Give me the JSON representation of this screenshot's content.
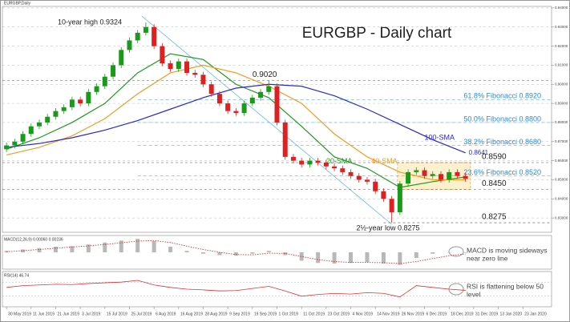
{
  "chart_data": {
    "type": "candlestick",
    "title": "EURGBP - Daily chart",
    "symbol_label": "EURGBP,Daily",
    "up_color": "#1a9a1a",
    "down_color": "#e02020",
    "xlim": [
      -0.5,
      66.5
    ],
    "xticks": [
      {
        "value": 0,
        "label": "30 May 2019"
      },
      {
        "value": 3,
        "label": "11 Jun 2019"
      },
      {
        "value": 6,
        "label": "21 Jun 2019"
      },
      {
        "value": 9,
        "label": "3 Jul 2019"
      },
      {
        "value": 12,
        "label": "15 Jul 2019"
      },
      {
        "value": 15,
        "label": "25 Jul 2019"
      },
      {
        "value": 18,
        "label": "6 Aug 2019"
      },
      {
        "value": 21,
        "label": "16 Aug 2019"
      },
      {
        "value": 24,
        "label": "28 Aug 2019"
      },
      {
        "value": 27,
        "label": "9 Sep 2019"
      },
      {
        "value": 30,
        "label": "19 Sep 2019"
      },
      {
        "value": 33,
        "label": "1 Oct 2019"
      },
      {
        "value": 36,
        "label": "11 Oct 2019"
      },
      {
        "value": 39,
        "label": "23 Oct 2019"
      },
      {
        "value": 42,
        "label": "4 Nov 2019"
      },
      {
        "value": 45,
        "label": "14 Nov 2019"
      },
      {
        "value": 48,
        "label": "26 Nov 2019"
      },
      {
        "value": 51,
        "label": "6 Dec 2019"
      },
      {
        "value": 54,
        "label": "18 Dec 2019"
      },
      {
        "value": 57,
        "label": "31 Dec 2019"
      },
      {
        "value": 60,
        "label": "13 Jan 2020"
      },
      {
        "value": 63,
        "label": "23 Jan 2020"
      }
    ],
    "ylim": [
      0.8225,
      0.9408
    ],
    "yticks": [
      {
        "value": 0.83,
        "label": "0.83000"
      },
      {
        "value": 0.84,
        "label": "0.84000"
      },
      {
        "value": 0.85,
        "label": "0.85000"
      },
      {
        "value": 0.86,
        "label": "0.86000"
      },
      {
        "value": 0.87,
        "label": "0.87000"
      },
      {
        "value": 0.88,
        "label": "0.88000"
      },
      {
        "value": 0.89,
        "label": "0.89000"
      },
      {
        "value": 0.9,
        "label": "0.90000"
      },
      {
        "value": 0.91,
        "label": "0.91000"
      },
      {
        "value": 0.92,
        "label": "0.92000"
      },
      {
        "value": 0.93,
        "label": "0.93000"
      },
      {
        "value": 0.94,
        "label": "0.94000"
      }
    ],
    "grid": true,
    "open": [
      0.866,
      0.868,
      0.87,
      0.874,
      0.878,
      0.88,
      0.883,
      0.886,
      0.888,
      0.892,
      0.89,
      0.896,
      0.899,
      0.904,
      0.91,
      0.918,
      0.923,
      0.927,
      0.93,
      0.92,
      0.911,
      0.908,
      0.912,
      0.906,
      0.905,
      0.9,
      0.895,
      0.89,
      0.886,
      0.885,
      0.89,
      0.893,
      0.896,
      0.899,
      0.88,
      0.862,
      0.86,
      0.858,
      0.86,
      0.859,
      0.857,
      0.856,
      0.854,
      0.852,
      0.85,
      0.849,
      0.844,
      0.84,
      0.833,
      0.848,
      0.854,
      0.855,
      0.852,
      0.853,
      0.85,
      0.854,
      0.852
    ],
    "high": [
      0.8695,
      0.8715,
      0.8755,
      0.8795,
      0.8815,
      0.8845,
      0.8875,
      0.8895,
      0.8935,
      0.8935,
      0.8975,
      0.9005,
      0.9055,
      0.9115,
      0.9195,
      0.9245,
      0.9285,
      0.9324,
      0.9315,
      0.9215,
      0.9125,
      0.9135,
      0.9135,
      0.9075,
      0.9065,
      0.9015,
      0.8965,
      0.8915,
      0.8875,
      0.8915,
      0.8945,
      0.8975,
      0.902,
      0.9005,
      0.8815,
      0.8635,
      0.8615,
      0.8615,
      0.8615,
      0.8605,
      0.8585,
      0.8575,
      0.8555,
      0.8535,
      0.8515,
      0.8505,
      0.8455,
      0.8415,
      0.8495,
      0.8555,
      0.8565,
      0.8565,
      0.8545,
      0.8545,
      0.8555,
      0.8555,
      0.8535
    ],
    "low": [
      0.8645,
      0.8665,
      0.8685,
      0.8725,
      0.8765,
      0.8785,
      0.8815,
      0.8845,
      0.8865,
      0.8885,
      0.8885,
      0.8945,
      0.8975,
      0.9025,
      0.9085,
      0.9165,
      0.9215,
      0.9255,
      0.9185,
      0.9095,
      0.9065,
      0.9065,
      0.9045,
      0.9035,
      0.8985,
      0.8935,
      0.8885,
      0.8845,
      0.8835,
      0.8835,
      0.8885,
      0.8915,
      0.8945,
      0.8785,
      0.8605,
      0.8585,
      0.8565,
      0.8565,
      0.8575,
      0.8555,
      0.8545,
      0.8525,
      0.8505,
      0.8485,
      0.8475,
      0.8425,
      0.8385,
      0.8275,
      0.8315,
      0.8465,
      0.8525,
      0.8505,
      0.8505,
      0.8485,
      0.8485,
      0.8505,
      0.849
    ],
    "close": [
      0.868,
      0.87,
      0.874,
      0.878,
      0.88,
      0.883,
      0.886,
      0.888,
      0.892,
      0.89,
      0.896,
      0.899,
      0.904,
      0.91,
      0.918,
      0.923,
      0.927,
      0.93,
      0.92,
      0.911,
      0.908,
      0.912,
      0.906,
      0.905,
      0.9,
      0.895,
      0.89,
      0.886,
      0.885,
      0.89,
      0.893,
      0.896,
      0.899,
      0.88,
      0.862,
      0.86,
      0.858,
      0.86,
      0.859,
      0.857,
      0.856,
      0.854,
      0.852,
      0.85,
      0.849,
      0.844,
      0.84,
      0.833,
      0.848,
      0.854,
      0.855,
      0.852,
      0.853,
      0.85,
      0.854,
      0.852,
      0.8505
    ],
    "series": [
      {
        "name": "20-SMA",
        "color": "#1e9a1e",
        "x": [
          0,
          4,
          8,
          12,
          16,
          20,
          24,
          28,
          32,
          36,
          40,
          44,
          48,
          52,
          56
        ],
        "values": [
          0.866,
          0.872,
          0.88,
          0.89,
          0.906,
          0.916,
          0.913,
          0.9,
          0.893,
          0.878,
          0.862,
          0.856,
          0.846,
          0.849,
          0.8515
        ]
      },
      {
        "name": "40-SMA",
        "color": "#f59a1e",
        "x": [
          0,
          4,
          8,
          12,
          16,
          20,
          24,
          28,
          32,
          36,
          40,
          44,
          48,
          52,
          56
        ],
        "values": [
          0.863,
          0.867,
          0.873,
          0.882,
          0.895,
          0.906,
          0.91,
          0.906,
          0.899,
          0.89,
          0.874,
          0.862,
          0.854,
          0.85,
          0.85
        ]
      },
      {
        "name": "100-SMA",
        "color": "#2a2ac8",
        "x": [
          0,
          4,
          8,
          12,
          16,
          20,
          24,
          28,
          32,
          36,
          40,
          44,
          48,
          52,
          56
        ],
        "values": [
          0.867,
          0.869,
          0.872,
          0.876,
          0.881,
          0.887,
          0.893,
          0.898,
          0.9,
          0.899,
          0.894,
          0.887,
          0.879,
          0.871,
          0.8641
        ],
        "value_labels": [
          null,
          null,
          null,
          null,
          null,
          null,
          null,
          null,
          null,
          null,
          null,
          null,
          null,
          null,
          "0.8641"
        ]
      }
    ],
    "levels": [
      {
        "value": 0.902,
        "label": "0.9020"
      },
      {
        "value": 0.859,
        "label": "0.8590"
      },
      {
        "value": 0.845,
        "label": "0.8450"
      },
      {
        "value": 0.8275,
        "label": "0.8275"
      }
    ],
    "fibonacci": [
      {
        "value": 0.892,
        "label": "61.8% Fibonacci 0.8920"
      },
      {
        "value": 0.88,
        "label": "50.0% Fibonacci 0.8800"
      },
      {
        "value": 0.868,
        "label": "38.2% Fibonacci 0.8680"
      },
      {
        "value": 0.852,
        "label": "23.6% Fibonacci 0.8520"
      }
    ],
    "high_annotation": "10-year high 0.9324",
    "low_annotation": "2½-year low 0.8275",
    "macd": {
      "label": "MACD(12,26,9) 0.00060 0.00236",
      "ylim": [
        -0.006,
        0.006
      ],
      "x": [
        0,
        2,
        4,
        6,
        8,
        10,
        12,
        14,
        16,
        18,
        20,
        22,
        24,
        26,
        28,
        30,
        32,
        34,
        36,
        38,
        40,
        42,
        44,
        46,
        48,
        50,
        52,
        54,
        56
      ],
      "histogram": [
        0.0005,
        0.001,
        0.0015,
        0.002,
        0.0022,
        0.0028,
        0.0035,
        0.0042,
        0.0048,
        0.004,
        0.002,
        0.0005,
        -0.0005,
        -0.001,
        -0.0012,
        -0.0005,
        0.0005,
        -0.001,
        -0.003,
        -0.0038,
        -0.004,
        -0.0038,
        -0.0035,
        -0.004,
        -0.0045,
        -0.002,
        -0.0005,
        0.0,
        -0.0002
      ],
      "signal": [
        0.0002,
        0.0006,
        0.001,
        0.0015,
        0.0019,
        0.0023,
        0.0028,
        0.0034,
        0.004,
        0.0042,
        0.0035,
        0.0022,
        0.001,
        0.0,
        -0.0008,
        -0.0009,
        -0.0003,
        -0.0004,
        -0.0015,
        -0.0026,
        -0.0033,
        -0.0036,
        -0.0036,
        -0.0037,
        -0.004,
        -0.0033,
        -0.0022,
        -0.0012,
        -0.0006
      ],
      "note": [
        "MACD is moving sideways",
        "near zero line"
      ]
    },
    "rsi": {
      "label": "RSI(14) 46.74",
      "ylim": [
        0,
        100
      ],
      "levels": [
        30,
        70
      ],
      "x": [
        0,
        2,
        4,
        6,
        8,
        10,
        12,
        14,
        16,
        18,
        20,
        22,
        24,
        26,
        28,
        30,
        32,
        34,
        36,
        38,
        40,
        42,
        44,
        46,
        48,
        50,
        52,
        54,
        56
      ],
      "values": [
        55,
        60,
        62,
        64,
        63,
        66,
        68,
        70,
        75,
        62,
        55,
        50,
        48,
        45,
        46,
        52,
        58,
        45,
        30,
        35,
        38,
        36,
        40,
        38,
        28,
        60,
        55,
        50,
        46.74
      ],
      "note": [
        "RSI is flattening below 50",
        "level"
      ]
    }
  }
}
